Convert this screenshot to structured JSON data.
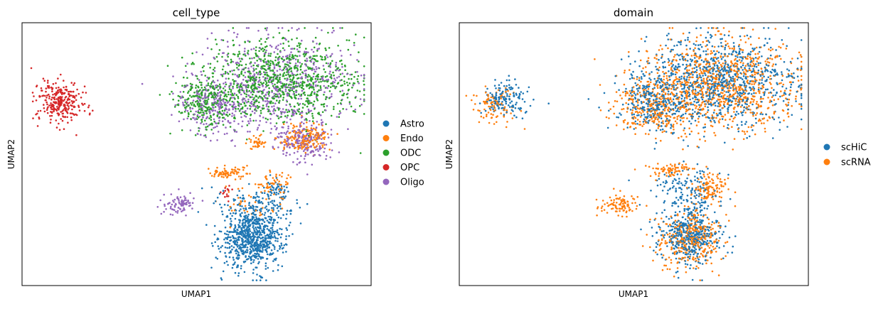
{
  "chart_data": [
    {
      "type": "scatter",
      "title": "cell_type",
      "xlabel": "UMAP1",
      "ylabel": "UMAP2",
      "xlim": [
        0,
        10
      ],
      "ylim": [
        0,
        10
      ],
      "grid": false,
      "ticks": "hidden",
      "legend_position": "right",
      "series": [
        {
          "name": "Astro",
          "color": "#1f77b4",
          "n": 950,
          "clusters": [
            {
              "cx": 6.6,
              "cy": 1.8,
              "sx": 0.45,
              "sy": 0.55,
              "w": 0.8
            },
            {
              "cx": 6.8,
              "cy": 3.0,
              "sx": 0.55,
              "sy": 0.45,
              "w": 0.16
            },
            {
              "cx": 7.3,
              "cy": 3.6,
              "sx": 0.15,
              "sy": 0.2,
              "w": 0.04
            }
          ]
        },
        {
          "name": "Endo",
          "color": "#ff7f0e",
          "n": 380,
          "clusters": [
            {
              "cx": 8.1,
              "cy": 5.6,
              "sx": 0.35,
              "sy": 0.25,
              "w": 0.45
            },
            {
              "cx": 5.9,
              "cy": 4.3,
              "sx": 0.3,
              "sy": 0.1,
              "w": 0.2
            },
            {
              "cx": 6.7,
              "cy": 5.4,
              "sx": 0.15,
              "sy": 0.12,
              "w": 0.1
            },
            {
              "cx": 7.2,
              "cy": 3.9,
              "sx": 0.25,
              "sy": 0.25,
              "w": 0.15
            },
            {
              "cx": 6.5,
              "cy": 3.1,
              "sx": 0.5,
              "sy": 0.4,
              "w": 0.1
            }
          ]
        },
        {
          "name": "ODC",
          "color": "#2ca02c",
          "n": 1150,
          "clusters": [
            {
              "cx": 7.4,
              "cy": 7.8,
              "sx": 1.1,
              "sy": 0.8,
              "w": 0.8
            },
            {
              "cx": 5.2,
              "cy": 7.0,
              "sx": 0.4,
              "sy": 0.5,
              "w": 0.2
            }
          ]
        },
        {
          "name": "OPC",
          "color": "#d62728",
          "n": 300,
          "clusters": [
            {
              "cx": 1.1,
              "cy": 7.0,
              "sx": 0.35,
              "sy": 0.4,
              "w": 0.95
            },
            {
              "cx": 5.9,
              "cy": 3.6,
              "sx": 0.1,
              "sy": 0.15,
              "w": 0.05
            }
          ]
        },
        {
          "name": "Oligo",
          "color": "#9467bd",
          "n": 1100,
          "clusters": [
            {
              "cx": 7.3,
              "cy": 7.7,
              "sx": 1.1,
              "sy": 0.9,
              "w": 0.55
            },
            {
              "cx": 5.5,
              "cy": 6.8,
              "sx": 0.5,
              "sy": 0.55,
              "w": 0.2
            },
            {
              "cx": 8.0,
              "cy": 5.5,
              "sx": 0.4,
              "sy": 0.35,
              "w": 0.17
            },
            {
              "cx": 4.5,
              "cy": 3.1,
              "sx": 0.25,
              "sy": 0.2,
              "w": 0.08
            }
          ]
        }
      ]
    },
    {
      "type": "scatter",
      "title": "domain",
      "xlabel": "UMAP1",
      "ylabel": "UMAP2",
      "xlim": [
        0,
        10
      ],
      "ylim": [
        0,
        10
      ],
      "grid": false,
      "ticks": "hidden",
      "legend_position": "right",
      "series": [
        {
          "name": "scHiC",
          "color": "#1f77b4",
          "n": 1900,
          "clusters": [
            {
              "cx": 7.4,
              "cy": 7.7,
              "sx": 1.1,
              "sy": 0.85,
              "w": 0.5
            },
            {
              "cx": 5.5,
              "cy": 6.9,
              "sx": 0.45,
              "sy": 0.5,
              "w": 0.12
            },
            {
              "cx": 6.6,
              "cy": 1.9,
              "sx": 0.45,
              "sy": 0.55,
              "w": 0.22
            },
            {
              "cx": 6.6,
              "cy": 3.6,
              "sx": 0.5,
              "sy": 0.5,
              "w": 0.08
            },
            {
              "cx": 1.3,
              "cy": 7.1,
              "sx": 0.3,
              "sy": 0.35,
              "w": 0.08
            }
          ]
        },
        {
          "name": "scRNA",
          "color": "#ff7f0e",
          "n": 1900,
          "clusters": [
            {
              "cx": 7.4,
              "cy": 7.6,
              "sx": 1.1,
              "sy": 0.85,
              "w": 0.5
            },
            {
              "cx": 5.4,
              "cy": 6.8,
              "sx": 0.45,
              "sy": 0.5,
              "w": 0.12
            },
            {
              "cx": 6.6,
              "cy": 1.8,
              "sx": 0.45,
              "sy": 0.55,
              "w": 0.18
            },
            {
              "cx": 7.2,
              "cy": 3.7,
              "sx": 0.25,
              "sy": 0.3,
              "w": 0.06
            },
            {
              "cx": 6.0,
              "cy": 4.4,
              "sx": 0.35,
              "sy": 0.12,
              "w": 0.04
            },
            {
              "cx": 4.6,
              "cy": 3.1,
              "sx": 0.25,
              "sy": 0.2,
              "w": 0.05
            },
            {
              "cx": 1.0,
              "cy": 6.9,
              "sx": 0.3,
              "sy": 0.35,
              "w": 0.05
            }
          ]
        }
      ]
    }
  ]
}
